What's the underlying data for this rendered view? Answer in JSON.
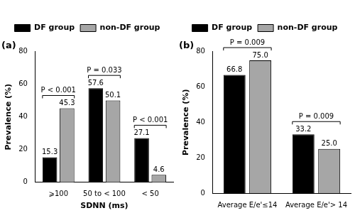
{
  "chart_data": [
    {
      "type": "bar",
      "title": "(a)",
      "x_label": "SDNN (ms)",
      "y_label": "Prevalence (%)",
      "categories": [
        "⩾100",
        "50 to < 100",
        "< 50"
      ],
      "series": [
        {
          "name": "DF group",
          "color": "#000000",
          "values": [
            15.3,
            57.6,
            27.1
          ],
          "value_labels": [
            "15.3",
            "57.6",
            "27.1"
          ]
        },
        {
          "name": "non-DF group",
          "color": "#a6a6a6",
          "values": [
            45.3,
            50.1,
            4.6
          ],
          "value_labels": [
            "45.3",
            "50.1",
            "4.6"
          ]
        }
      ],
      "annotations": [
        "P < 0.001",
        "P = 0.033",
        "P < 0.001"
      ],
      "ylim": [
        0,
        80
      ],
      "yticks": [
        0,
        20,
        40,
        60,
        80
      ],
      "grid": false,
      "legend": "top",
      "data_labels": true
    },
    {
      "type": "bar",
      "title": "(b)",
      "y_label": "Prevalence (%)",
      "categories": [
        "Average E/e'≤14",
        "Average E/e'> 14"
      ],
      "series": [
        {
          "name": "DF group",
          "color": "#000000",
          "values": [
            66.8,
            33.2
          ],
          "value_labels": [
            "66.8",
            "33.2"
          ]
        },
        {
          "name": "non-DF group",
          "color": "#a6a6a6",
          "values": [
            75.0,
            25.0
          ],
          "value_labels": [
            "75.0",
            "25.0"
          ]
        }
      ],
      "annotations": [
        "P = 0.009",
        "P = 0.009"
      ],
      "ylim": [
        0,
        80
      ],
      "yticks": [
        0,
        20,
        40,
        60,
        80
      ],
      "grid": false,
      "legend": "top",
      "data_labels": true
    }
  ]
}
